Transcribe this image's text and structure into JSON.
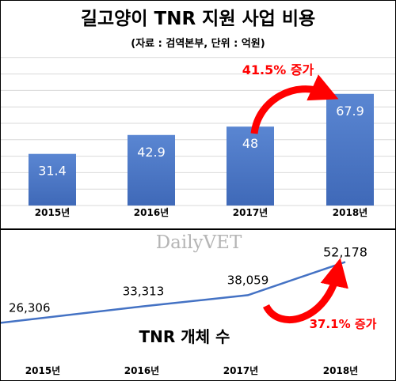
{
  "chart_data": [
    {
      "type": "bar",
      "title": "길고양이 TNR 지원 사업 비용",
      "subtitle": "(자료 : 검역본부, 단위 : 억원)",
      "categories": [
        "2015년",
        "2016년",
        "2017년",
        "2018년"
      ],
      "values": [
        31.4,
        42.9,
        48,
        67.9
      ],
      "value_labels": [
        "31.4",
        "42.9",
        "48",
        "67.9"
      ],
      "ylim": [
        0,
        90
      ],
      "grid": true,
      "bar_color": "#4472c4",
      "annotation": {
        "text": "41.5% 증가",
        "color": "#ff0000"
      }
    },
    {
      "type": "line",
      "title": "TNR 개체 수",
      "categories": [
        "2015년",
        "2016년",
        "2017년",
        "2018년"
      ],
      "values": [
        26306,
        33313,
        38059,
        52178
      ],
      "value_labels": [
        "26,306",
        "33,313",
        "38,059",
        "52,178"
      ],
      "ylim": [
        15000,
        55000
      ],
      "grid": false,
      "line_color": "#4472c4",
      "annotation": {
        "text": "37.1% 증가",
        "color": "#ff0000"
      }
    }
  ],
  "watermark": "DailyVET"
}
